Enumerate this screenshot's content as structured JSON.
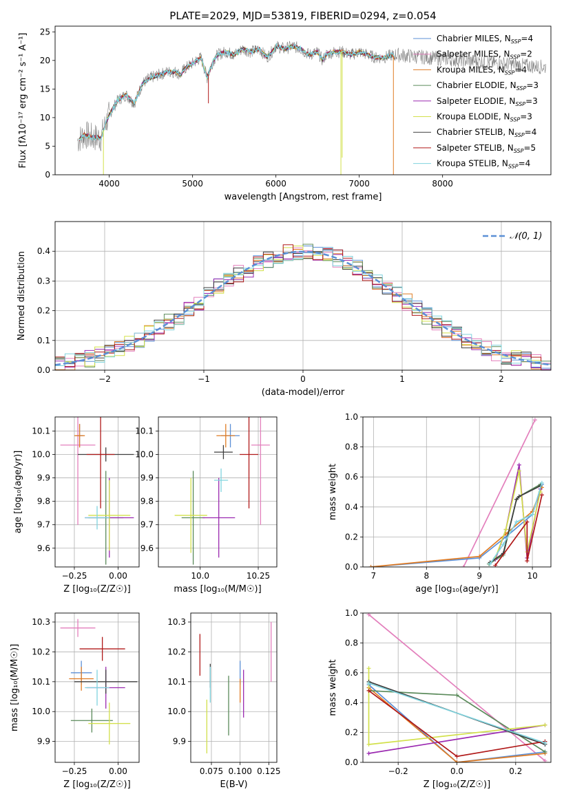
{
  "figure_title": "PLATE=2029, MJD=53819, FIBERID=0294, z=0.054",
  "colors": {
    "chabrier_miles": "#5b8fd6",
    "salpeter_miles": "#e37fbc",
    "kroupa_miles": "#e07b22",
    "chabrier_elodie": "#5a8a5a",
    "salpeter_elodie": "#9a28b0",
    "kroupa_elodie": "#d2e04a",
    "chabrier_stelib": "#3d3d3d",
    "salpeter_stelib": "#b01818",
    "kroupa_stelib": "#7fd3de",
    "data_gray": "#808080",
    "normal_curve": "#5b8fd6"
  },
  "chart_data": [
    {
      "id": "spectrum",
      "type": "line",
      "title": "PLATE=2029, MJD=53819, FIBERID=0294, z=0.054",
      "xlabel": "wavelength [Angstrom, rest frame]",
      "ylabel": "Flux [f$_\\lambda$10$^{-17}$ erg cm$^{-2}$ s$^{-1}$ A$^{-1}$]",
      "ylabel_display": "Flux [fλ10⁻¹⁷ erg cm⁻² s⁻¹ A⁻¹]",
      "xlim": [
        3350,
        9300
      ],
      "ylim": [
        0,
        26
      ],
      "xticks": [
        "4000",
        "5000",
        "6000",
        "7000",
        "8000"
      ],
      "yticks": [
        "0",
        "5",
        "10",
        "15",
        "20",
        "25"
      ],
      "grid": false,
      "legend_position": "upper-right",
      "continuum_x": [
        3620,
        3700,
        3800,
        3900,
        3970,
        4000,
        4100,
        4200,
        4300,
        4400,
        4500,
        4600,
        4700,
        4800,
        4860,
        4900,
        5000,
        5100,
        5175,
        5250,
        5300,
        5400,
        5500,
        5600,
        5700,
        5800,
        5890,
        5950,
        6000,
        6100,
        6200,
        6300,
        6400,
        6500,
        6560,
        6600,
        6700,
        6800,
        6900,
        7000,
        7100,
        7200,
        7300,
        7400,
        7420
      ],
      "continuum_y": [
        6,
        7,
        6.5,
        6.5,
        9.5,
        10.5,
        13,
        14,
        12.5,
        16,
        17,
        17.5,
        18,
        18,
        17.5,
        18.5,
        19.5,
        20.5,
        17,
        20,
        21,
        21.5,
        21,
        22,
        21.5,
        22,
        20.5,
        21.5,
        22.5,
        22,
        22.5,
        22,
        21,
        21.5,
        20,
        21,
        21.5,
        21.5,
        21,
        21.5,
        21,
        20.5,
        20.5,
        21,
        20.5
      ],
      "model_line_end_wavelength": 7420,
      "dips": [
        {
          "x": 3930,
          "y_to": -1,
          "series": "Kroupa ELODIE"
        },
        {
          "x": 6780,
          "y_to": -1,
          "series": "Kroupa ELODIE"
        },
        {
          "x": 5190,
          "y_to": 12.5,
          "series": "Salpeter STELIB"
        },
        {
          "x": 6795,
          "y_to": 3,
          "series": "Kroupa ELODIE"
        },
        {
          "x": 7410,
          "y_to": -1,
          "series": "Kroupa MILES"
        }
      ],
      "legend": [
        {
          "label": "Chabrier MILES",
          "nssp": "4",
          "series": "chabrier_miles"
        },
        {
          "label": "Salpeter MILES",
          "nssp": "2",
          "series": "salpeter_miles"
        },
        {
          "label": "Kroupa MILES",
          "nssp": "4",
          "series": "kroupa_miles"
        },
        {
          "label": "Chabrier ELODIE",
          "nssp": "3",
          "series": "chabrier_elodie"
        },
        {
          "label": "Salpeter ELODIE",
          "nssp": "3",
          "series": "salpeter_elodie"
        },
        {
          "label": "Kroupa ELODIE",
          "nssp": "3",
          "series": "kroupa_elodie"
        },
        {
          "label": "Chabrier STELIB",
          "nssp": "4",
          "series": "chabrier_stelib"
        },
        {
          "label": "Salpeter STELIB",
          "nssp": "5",
          "series": "salpeter_stelib"
        },
        {
          "label": "Kroupa STELIB",
          "nssp": "4",
          "series": "kroupa_stelib"
        }
      ],
      "legend_suffix_label": "N",
      "legend_suffix_sub": "SSP"
    },
    {
      "id": "residuals",
      "type": "line",
      "xlabel": "(data-model)/error",
      "ylabel": "Normed distribution",
      "xlim": [
        -2.5,
        2.5
      ],
      "ylim": [
        0,
        0.5
      ],
      "xticks": [
        "−2",
        "−1",
        "0",
        "1",
        "2"
      ],
      "ytick_values": [
        0.0,
        0.1,
        0.2,
        0.3,
        0.4
      ],
      "yticks": [
        "0.0",
        "0.1",
        "0.2",
        "0.3",
        "0.4"
      ],
      "grid": true,
      "legend_position": "upper-right",
      "normal_label": "𝒩(0, 1)",
      "bin_width": 0.1,
      "histogram_series": 9
    },
    {
      "id": "age_vs_Z",
      "type": "scatter",
      "xlabel": "Z [log₁₀(Z/Z☉)]",
      "ylabel": "age  [log₁₀(age/yr)]",
      "xlim": [
        -0.36,
        0.12
      ],
      "ylim": [
        9.52,
        10.16
      ],
      "xticks": [
        "−0.25",
        "0.00"
      ],
      "yticks": [
        "9.6",
        "9.7",
        "9.8",
        "9.9",
        "10.0",
        "10.1"
      ],
      "grid": true,
      "points": [
        {
          "series": "chabrier_miles",
          "x": -0.22,
          "y": 10.08,
          "xerr": 0.02,
          "yerr": 0.05
        },
        {
          "series": "salpeter_miles",
          "x": -0.23,
          "y": 10.04,
          "xerr": 0.1,
          "yerr": 0.34
        },
        {
          "series": "kroupa_miles",
          "x": -0.22,
          "y": 10.08,
          "xerr": 0.03,
          "yerr": 0.05
        },
        {
          "series": "chabrier_elodie",
          "x": -0.07,
          "y": 9.73,
          "xerr": 0.1,
          "yerr": 0.2
        },
        {
          "series": "salpeter_elodie",
          "x": -0.05,
          "y": 9.73,
          "xerr": 0.14,
          "yerr": 0.17
        },
        {
          "series": "kroupa_elodie",
          "x": -0.05,
          "y": 9.74,
          "xerr": 0.12,
          "yerr": 0.15
        },
        {
          "series": "chabrier_stelib",
          "x": -0.07,
          "y": 10.0,
          "xerr": 0.16,
          "yerr": 0.03
        },
        {
          "series": "salpeter_stelib",
          "x": -0.1,
          "y": 10.0,
          "xerr": 0.08,
          "yerr": 0.23
        },
        {
          "series": "kroupa_stelib",
          "x": -0.12,
          "y": 9.73,
          "xerr": 0.07,
          "yerr": 0.05
        }
      ]
    },
    {
      "id": "age_vs_mass",
      "type": "scatter",
      "xlabel": "mass [log₁₀(M/M☉)]",
      "ylabel": "",
      "xlim": [
        9.82,
        10.33
      ],
      "ylim": [
        9.52,
        10.16
      ],
      "xticks": [
        "10.0",
        "10.25"
      ],
      "yticks": [
        "9.6",
        "9.7",
        "9.8",
        "9.9",
        "10.0",
        "10.1"
      ],
      "grid": true,
      "points": [
        {
          "series": "chabrier_miles",
          "x": 10.13,
          "y": 10.08,
          "xerr": 0.04,
          "yerr": 0.05
        },
        {
          "series": "salpeter_miles",
          "x": 10.26,
          "y": 10.04,
          "xerr": 0.04,
          "yerr": 0.34
        },
        {
          "series": "kroupa_miles",
          "x": 10.11,
          "y": 10.08,
          "xerr": 0.04,
          "yerr": 0.05
        },
        {
          "series": "chabrier_elodie",
          "x": 9.97,
          "y": 9.73,
          "xerr": 0.05,
          "yerr": 0.2
        },
        {
          "series": "salpeter_elodie",
          "x": 10.08,
          "y": 9.73,
          "xerr": 0.07,
          "yerr": 0.17
        },
        {
          "series": "kroupa_elodie",
          "x": 9.96,
          "y": 9.74,
          "xerr": 0.07,
          "yerr": 0.16
        },
        {
          "series": "chabrier_stelib",
          "x": 10.1,
          "y": 10.01,
          "xerr": 0.04,
          "yerr": 0.03
        },
        {
          "series": "salpeter_stelib",
          "x": 10.21,
          "y": 10.0,
          "xerr": 0.04,
          "yerr": 0.23
        },
        {
          "series": "kroupa_stelib",
          "x": 10.09,
          "y": 9.89,
          "xerr": 0.03,
          "yerr": 0.05
        }
      ]
    },
    {
      "id": "mass_weight_vs_age",
      "type": "line",
      "xlabel": "age  [log₁₀(age/yr)]",
      "ylabel": "mass weight",
      "xlim": [
        6.8,
        10.35
      ],
      "ylim": [
        0,
        1
      ],
      "xticks": [
        "7",
        "8",
        "9",
        "10"
      ],
      "xtick_values": [
        7,
        8,
        9,
        10
      ],
      "yticks": [
        "0.0",
        "0.2",
        "0.4",
        "0.6",
        "0.8",
        "1.0"
      ],
      "ytick_values": [
        0,
        0.2,
        0.4,
        0.6,
        0.8,
        1.0
      ],
      "grid": true,
      "series": [
        {
          "name": "salpeter_miles",
          "x": [
            8.7,
            10.05
          ],
          "y": [
            0.0,
            0.98
          ]
        },
        {
          "name": "chabrier_miles",
          "x": [
            6.95,
            9.0,
            9.5,
            10.0,
            10.18
          ],
          "y": [
            0.0,
            0.06,
            0.2,
            0.35,
            0.55
          ]
        },
        {
          "name": "kroupa_miles",
          "x": [
            6.95,
            9.0,
            9.5,
            10.0,
            10.18
          ],
          "y": [
            0.0,
            0.07,
            0.22,
            0.37,
            0.53
          ]
        },
        {
          "name": "chabrier_elodie",
          "x": [
            9.18,
            9.45,
            9.7,
            9.75,
            10.15
          ],
          "y": [
            0.02,
            0.08,
            0.45,
            0.47,
            0.55
          ]
        },
        {
          "name": "salpeter_elodie",
          "x": [
            9.3,
            9.5,
            9.75,
            9.9,
            10.15
          ],
          "y": [
            0.05,
            0.25,
            0.68,
            0.06,
            0.52
          ]
        },
        {
          "name": "kroupa_elodie",
          "x": [
            9.3,
            9.5,
            9.75,
            9.9,
            10.15
          ],
          "y": [
            0.06,
            0.25,
            0.64,
            0.1,
            0.5
          ]
        },
        {
          "name": "chabrier_stelib",
          "x": [
            9.2,
            9.45,
            9.7,
            9.75,
            10.15
          ],
          "y": [
            0.03,
            0.09,
            0.45,
            0.47,
            0.54
          ]
        },
        {
          "name": "salpeter_stelib",
          "x": [
            9.3,
            9.9,
            9.9,
            10.18
          ],
          "y": [
            0.01,
            0.3,
            0.04,
            0.48
          ]
        },
        {
          "name": "kroupa_stelib",
          "x": [
            9.2,
            9.45,
            9.7,
            10.0,
            10.18
          ],
          "y": [
            0.02,
            0.15,
            0.3,
            0.35,
            0.56
          ]
        }
      ]
    },
    {
      "id": "mass_vs_Z",
      "type": "scatter",
      "xlabel": "Z [log₁₀(Z/Z☉)]",
      "ylabel": "mass [log₁₀(M/M☉)]",
      "xlim": [
        -0.36,
        0.12
      ],
      "ylim": [
        9.83,
        10.33
      ],
      "xticks": [
        "−0.25",
        "0.00"
      ],
      "yticks": [
        "9.9",
        "10.0",
        "10.1",
        "10.2",
        "10.3"
      ],
      "grid": true,
      "points": [
        {
          "series": "chabrier_miles",
          "x": -0.21,
          "y": 10.13,
          "xerr": 0.06,
          "yerr": 0.04
        },
        {
          "series": "salpeter_miles",
          "x": -0.23,
          "y": 10.28,
          "xerr": 0.1,
          "yerr": 0.03
        },
        {
          "series": "kroupa_miles",
          "x": -0.21,
          "y": 10.11,
          "xerr": 0.07,
          "yerr": 0.04
        },
        {
          "series": "chabrier_elodie",
          "x": -0.15,
          "y": 9.97,
          "xerr": 0.12,
          "yerr": 0.04
        },
        {
          "series": "salpeter_elodie",
          "x": -0.07,
          "y": 10.08,
          "xerr": 0.11,
          "yerr": 0.07
        },
        {
          "series": "kroupa_elodie",
          "x": -0.05,
          "y": 9.96,
          "xerr": 0.12,
          "yerr": 0.07
        },
        {
          "series": "chabrier_stelib",
          "x": -0.07,
          "y": 10.1,
          "xerr": 0.18,
          "yerr": 0.04
        },
        {
          "series": "salpeter_stelib",
          "x": -0.09,
          "y": 10.21,
          "xerr": 0.13,
          "yerr": 0.04
        },
        {
          "series": "kroupa_stelib",
          "x": -0.12,
          "y": 10.08,
          "xerr": 0.07,
          "yerr": 0.06
        }
      ]
    },
    {
      "id": "mass_vs_ebv",
      "type": "scatter",
      "xlabel": "E(B-V)",
      "ylabel": "",
      "xlim": [
        0.057,
        0.132
      ],
      "ylim": [
        9.83,
        10.33
      ],
      "xticks": [
        "0.075",
        "0.100",
        "0.125"
      ],
      "yticks": [
        "9.9",
        "10.0",
        "10.1",
        "10.2",
        "10.3"
      ],
      "grid": true,
      "points": [
        {
          "series": "chabrier_miles",
          "x": 0.1,
          "y": 10.13,
          "xerr": 0.0,
          "yerr": 0.04
        },
        {
          "series": "salpeter_miles",
          "x": 0.127,
          "y": 10.2,
          "xerr": 0.0,
          "yerr": 0.1
        },
        {
          "series": "kroupa_miles",
          "x": 0.1,
          "y": 10.07,
          "xerr": 0.0,
          "yerr": 0.04
        },
        {
          "series": "chabrier_elodie",
          "x": 0.09,
          "y": 10.02,
          "xerr": 0.0,
          "yerr": 0.1
        },
        {
          "series": "salpeter_elodie",
          "x": 0.103,
          "y": 10.06,
          "xerr": 0.0,
          "yerr": 0.08
        },
        {
          "series": "kroupa_elodie",
          "x": 0.071,
          "y": 9.95,
          "xerr": 0.0,
          "yerr": 0.09
        },
        {
          "series": "chabrier_stelib",
          "x": 0.074,
          "y": 10.12,
          "xerr": 0.0,
          "yerr": 0.04
        },
        {
          "series": "salpeter_stelib",
          "x": 0.065,
          "y": 10.19,
          "xerr": 0.0,
          "yerr": 0.07
        },
        {
          "series": "kroupa_stelib",
          "x": 0.074,
          "y": 10.09,
          "xerr": 0.0,
          "yerr": 0.06
        }
      ]
    },
    {
      "id": "mass_weight_vs_Z",
      "type": "line",
      "xlabel": "Z [log₁₀(Z/Z☉)]",
      "ylabel": "mass weight",
      "xlim": [
        -0.32,
        0.32
      ],
      "ylim": [
        0,
        1
      ],
      "xticks": [
        "−0.2",
        "0.0",
        "0.2"
      ],
      "xtick_values": [
        -0.2,
        0.0,
        0.2
      ],
      "yticks": [
        "0.0",
        "0.2",
        "0.4",
        "0.6",
        "0.8",
        "1.0"
      ],
      "ytick_values": [
        0,
        0.2,
        0.4,
        0.6,
        0.8,
        1.0
      ],
      "grid": true,
      "series": [
        {
          "name": "salpeter_miles",
          "x": [
            -0.3,
            0.3
          ],
          "y": [
            0.99,
            0.01
          ]
        },
        {
          "name": "chabrier_miles",
          "x": [
            -0.3,
            0.0,
            0.3
          ],
          "y": [
            0.52,
            0.0,
            0.07
          ]
        },
        {
          "name": "kroupa_miles",
          "x": [
            -0.3,
            0.0,
            0.3
          ],
          "y": [
            0.5,
            0.0,
            0.06
          ]
        },
        {
          "name": "chabrier_elodie",
          "x": [
            -0.3,
            0.0,
            0.3
          ],
          "y": [
            0.48,
            0.45,
            0.07
          ]
        },
        {
          "name": "salpeter_elodie",
          "x": [
            -0.3,
            0.3
          ],
          "y": [
            0.06,
            0.25
          ]
        },
        {
          "name": "kroupa_elodie",
          "x": [
            -0.3,
            -0.3,
            0.3
          ],
          "y": [
            0.63,
            0.12,
            0.25
          ]
        },
        {
          "name": "chabrier_stelib",
          "x": [
            -0.3,
            0.3
          ],
          "y": [
            0.54,
            0.12
          ]
        },
        {
          "name": "salpeter_stelib",
          "x": [
            -0.3,
            0.0,
            0.3
          ],
          "y": [
            0.48,
            0.04,
            0.14
          ]
        },
        {
          "name": "kroupa_stelib",
          "x": [
            -0.3,
            0.3
          ],
          "y": [
            0.53,
            0.13
          ]
        }
      ]
    }
  ]
}
